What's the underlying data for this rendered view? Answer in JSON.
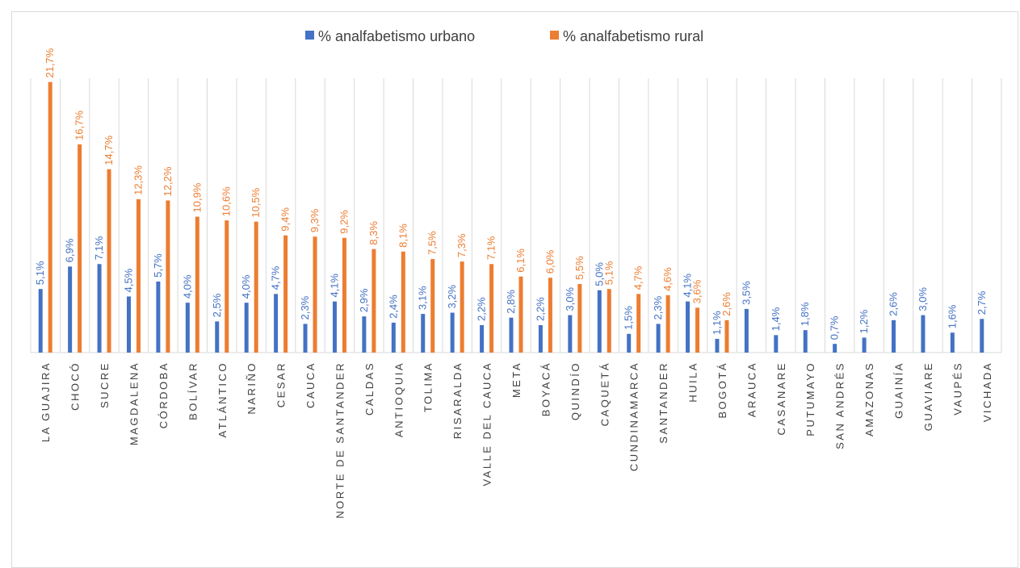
{
  "chart_data": {
    "type": "bar",
    "title": "",
    "xlabel": "",
    "ylabel": "",
    "ylim": [
      0,
      22
    ],
    "grid": "vertical",
    "legend_position": "top",
    "colors": {
      "urbano": "#4472c4",
      "rural": "#ed7d31"
    },
    "categories": [
      "LA GUAJIRA",
      "CHOCÓ",
      "SUCRE",
      "MAGDALENA",
      "CÓRDOBA",
      "BOLÍVAR",
      "ATLÁNTICO",
      "NARIÑO",
      "CESAR",
      "CAUCA",
      "NORTE DE SANTANDER",
      "CALDAS",
      "ANTIOQUIA",
      "TOLIMA",
      "RISARALDA",
      "VALLE DEL CAUCA",
      "META",
      "BOYACÁ",
      "QUINDÍO",
      "CAQUETÁ",
      "CUNDINAMARCA",
      "SANTANDER",
      "HUILA",
      "BOGOTÁ",
      "ARAUCA",
      "CASANARE",
      "PUTUMAYO",
      "SAN ANDRÉS",
      "AMAZONAS",
      "GUAINÍA",
      "GUAVIARE",
      "VAUPÉS",
      "VICHADA"
    ],
    "series": [
      {
        "name": "% analfabetismo urbano",
        "values": [
          5.1,
          6.9,
          7.1,
          4.5,
          5.7,
          4.0,
          2.5,
          4.0,
          4.7,
          2.3,
          4.1,
          2.9,
          2.4,
          3.1,
          3.2,
          2.2,
          2.8,
          2.2,
          3.0,
          5.0,
          1.5,
          2.3,
          4.1,
          1.1,
          3.5,
          1.4,
          1.8,
          0.7,
          1.2,
          2.6,
          3.0,
          1.6,
          2.7
        ],
        "labels": [
          "5,1%",
          "6,9%",
          "7,1%",
          "4,5%",
          "5,7%",
          "4,0%",
          "2,5%",
          "4,0%",
          "4,7%",
          "2,3%",
          "4,1%",
          "2,9%",
          "2,4%",
          "3,1%",
          "3,2%",
          "2,2%",
          "2,8%",
          "2,2%",
          "3,0%",
          "5,0%",
          "1,5%",
          "2,3%",
          "4,1%",
          "1,1%",
          "3,5%",
          "1,4%",
          "1,8%",
          "0,7%",
          "1,2%",
          "2,6%",
          "3,0%",
          "1,6%",
          "2,7%"
        ]
      },
      {
        "name": "% analfabetismo rural",
        "values": [
          21.7,
          16.7,
          14.7,
          12.3,
          12.2,
          10.9,
          10.6,
          10.5,
          9.4,
          9.3,
          9.2,
          8.3,
          8.1,
          7.5,
          7.3,
          7.1,
          6.1,
          6.0,
          5.5,
          5.1,
          4.7,
          4.6,
          3.6,
          2.6,
          null,
          null,
          null,
          null,
          null,
          null,
          null,
          null,
          null
        ],
        "labels": [
          "21,7%",
          "16,7%",
          "14,7%",
          "12,3%",
          "12,2%",
          "10,9%",
          "10,6%",
          "10,5%",
          "9,4%",
          "9,3%",
          "9,2%",
          "8,3%",
          "8,1%",
          "7,5%",
          "7,3%",
          "7,1%",
          "6,1%",
          "6,0%",
          "5,5%",
          "5,1%",
          "4,7%",
          "4,6%",
          "3,6%",
          "2,6%",
          null,
          null,
          null,
          null,
          null,
          null,
          null,
          null,
          null
        ]
      }
    ]
  }
}
